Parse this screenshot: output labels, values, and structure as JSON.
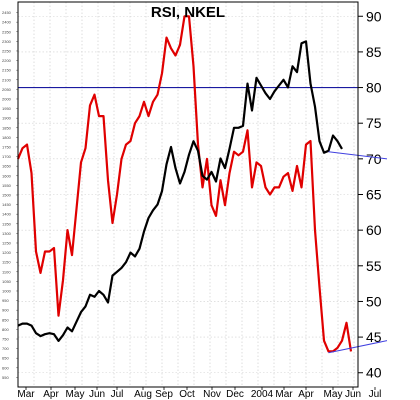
{
  "chart_data": {
    "type": "line",
    "title": "RSI, NKEL",
    "xlabel": "",
    "ylabel": "",
    "x_ticks": [
      "Mar",
      "Apr",
      "May",
      "Jun",
      "Jul",
      "Aug",
      "Sep",
      "Oct",
      "Nov",
      "Dec",
      "2004",
      "Mar",
      "Apr",
      "May",
      "Jun",
      "Jul"
    ],
    "right_axis": {
      "ylim": [
        38,
        92
      ],
      "ticks": [
        40,
        45,
        50,
        55,
        60,
        65,
        70,
        75,
        80,
        85,
        90
      ]
    },
    "left_axis": {
      "ylim": [
        500,
        2505
      ],
      "ticks": [
        550,
        600,
        650,
        700,
        750,
        800,
        850,
        900,
        950,
        1000,
        1050,
        1100,
        1150,
        1200,
        1250,
        1300,
        1350,
        1400,
        1450,
        1500,
        1550,
        1600,
        1650,
        1700,
        1750,
        1800,
        1850,
        1900,
        1950,
        2000,
        2050,
        2100,
        2150,
        2200,
        2250,
        2300,
        2350,
        2400,
        2450,
        2500
      ]
    },
    "overbought_level": 80,
    "grid": true,
    "x_grid_spacing": 16,
    "series": [
      {
        "color": "#e00000",
        "axis": "right",
        "values": [
          [
            0,
            70
          ],
          [
            3,
            71.5
          ],
          [
            6,
            72
          ],
          [
            9,
            68
          ],
          [
            12,
            57
          ],
          [
            15,
            54
          ],
          [
            18,
            57
          ],
          [
            21,
            57
          ],
          [
            24,
            57.5
          ],
          [
            27,
            48
          ],
          [
            30,
            53
          ],
          [
            33,
            60
          ],
          [
            36,
            56.5
          ],
          [
            39,
            63
          ],
          [
            42,
            69.5
          ],
          [
            45,
            71.5
          ],
          [
            48,
            77.5
          ],
          [
            51,
            79
          ],
          [
            54,
            76
          ],
          [
            57,
            76
          ],
          [
            60,
            67
          ],
          [
            63,
            61
          ],
          [
            66,
            65
          ],
          [
            69,
            70
          ],
          [
            72,
            72
          ],
          [
            75,
            72.5
          ],
          [
            78,
            75
          ],
          [
            81,
            76
          ],
          [
            84,
            78
          ],
          [
            87,
            76
          ],
          [
            90,
            78
          ],
          [
            93,
            79
          ],
          [
            96,
            82
          ],
          [
            99,
            87
          ],
          [
            102,
            85.5
          ],
          [
            105,
            84.5
          ],
          [
            108,
            86
          ],
          [
            111,
            90
          ],
          [
            114,
            90
          ],
          [
            117,
            83
          ],
          [
            120,
            72
          ],
          [
            123,
            66
          ],
          [
            126,
            70
          ],
          [
            129,
            63.5
          ],
          [
            132,
            62
          ],
          [
            135,
            67
          ],
          [
            138,
            63.5
          ],
          [
            141,
            68
          ],
          [
            144,
            71
          ],
          [
            147,
            70.5
          ],
          [
            150,
            71
          ],
          [
            153,
            74
          ],
          [
            156,
            66
          ],
          [
            159,
            69.5
          ],
          [
            162,
            69
          ],
          [
            165,
            66
          ],
          [
            168,
            65
          ],
          [
            171,
            66
          ],
          [
            174,
            66
          ],
          [
            177,
            67.5
          ],
          [
            180,
            68
          ],
          [
            183,
            65.5
          ],
          [
            186,
            69
          ],
          [
            189,
            66
          ],
          [
            192,
            72
          ],
          [
            195,
            72.5
          ],
          [
            198,
            60
          ],
          [
            201,
            52
          ],
          [
            204,
            44.5
          ],
          [
            207,
            43
          ],
          [
            210,
            43
          ],
          [
            213,
            43.5
          ],
          [
            216,
            44.5
          ],
          [
            219,
            47
          ],
          [
            222,
            43
          ]
        ]
      },
      {
        "color": "#000000",
        "axis": "left",
        "values": [
          [
            0,
            820
          ],
          [
            3,
            830
          ],
          [
            6,
            830
          ],
          [
            9,
            820
          ],
          [
            12,
            780
          ],
          [
            15,
            765
          ],
          [
            18,
            775
          ],
          [
            21,
            780
          ],
          [
            24,
            775
          ],
          [
            27,
            740
          ],
          [
            30,
            770
          ],
          [
            33,
            810
          ],
          [
            36,
            790
          ],
          [
            39,
            840
          ],
          [
            42,
            890
          ],
          [
            45,
            920
          ],
          [
            48,
            980
          ],
          [
            51,
            970
          ],
          [
            54,
            1000
          ],
          [
            57,
            980
          ],
          [
            60,
            940
          ],
          [
            63,
            1080
          ],
          [
            66,
            1100
          ],
          [
            69,
            1120
          ],
          [
            72,
            1150
          ],
          [
            75,
            1200
          ],
          [
            78,
            1180
          ],
          [
            81,
            1220
          ],
          [
            84,
            1310
          ],
          [
            87,
            1380
          ],
          [
            90,
            1420
          ],
          [
            93,
            1450
          ],
          [
            96,
            1520
          ],
          [
            99,
            1660
          ],
          [
            102,
            1750
          ],
          [
            105,
            1640
          ],
          [
            108,
            1560
          ],
          [
            111,
            1620
          ],
          [
            114,
            1710
          ],
          [
            117,
            1780
          ],
          [
            120,
            1730
          ],
          [
            123,
            1600
          ],
          [
            126,
            1580
          ],
          [
            129,
            1620
          ],
          [
            132,
            1570
          ],
          [
            135,
            1690
          ],
          [
            138,
            1640
          ],
          [
            141,
            1740
          ],
          [
            144,
            1850
          ],
          [
            147,
            1850
          ],
          [
            150,
            1860
          ],
          [
            153,
            2080
          ],
          [
            156,
            1940
          ],
          [
            159,
            2110
          ],
          [
            162,
            2070
          ],
          [
            165,
            2030
          ],
          [
            168,
            2000
          ],
          [
            171,
            2040
          ],
          [
            174,
            2070
          ],
          [
            177,
            2100
          ],
          [
            180,
            2060
          ],
          [
            183,
            2170
          ],
          [
            186,
            2140
          ],
          [
            189,
            2290
          ],
          [
            192,
            2300
          ],
          [
            195,
            2080
          ],
          [
            198,
            1960
          ],
          [
            201,
            1780
          ],
          [
            204,
            1720
          ],
          [
            207,
            1730
          ],
          [
            210,
            1810
          ],
          [
            213,
            1780
          ],
          [
            216,
            1740
          ]
        ]
      }
    ],
    "trendlines": [
      {
        "color": "#4040e0",
        "axis": "right",
        "from": [
          207,
          71
        ],
        "to": [
          246,
          70
        ]
      },
      {
        "color": "#4040e0",
        "axis": "right",
        "from": [
          207,
          42.8
        ],
        "to": [
          246,
          44.5
        ]
      }
    ]
  }
}
